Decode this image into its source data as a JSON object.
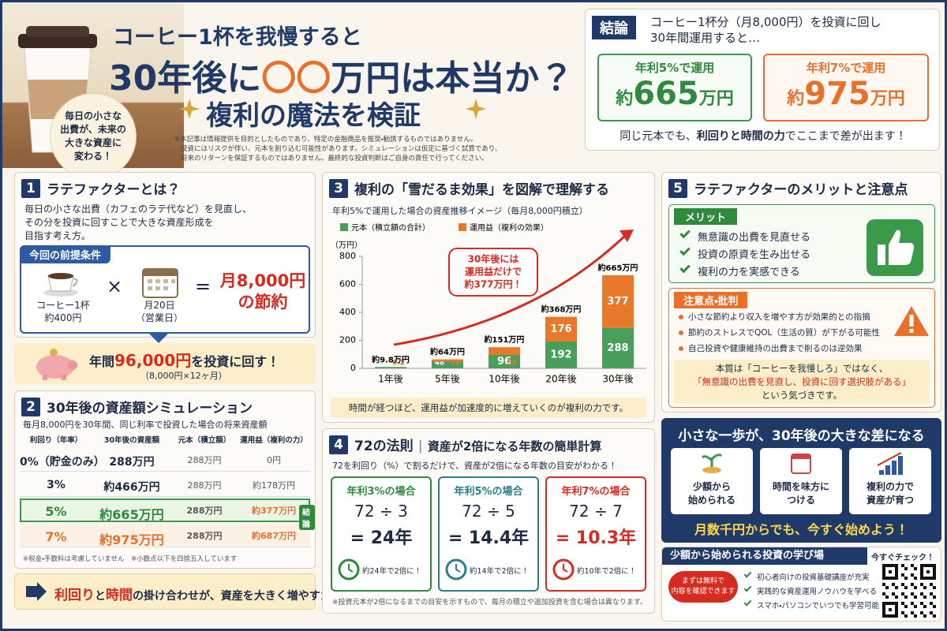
{
  "header": {
    "title_line1": "コーヒー1杯を我慢すると",
    "title_line2": [
      "30年後に",
      "〇〇",
      "万円は本当か？"
    ],
    "title_line3": "複利の魔法を検証",
    "badge": [
      "毎日の小さな",
      "出費が、未来の",
      "大きな資産に",
      "変わる！"
    ],
    "disclaimer": [
      "※本記事は情報提供を目的としたものであり、特定の金融商品を推奨・勧誘するものではありません。",
      "投資にはリスクが伴い、元本を割り込む可能性があります。シミュレーションは仮定に基づく試算であり、",
      "将来のリターンを保証するものではありません。最終的な投資判断はご自身の責任で行ってください。"
    ]
  },
  "conclusion": {
    "label": "結論",
    "text": [
      "コーヒー1杯分（月8,000円）を投資に回し",
      "30年間運用すると…"
    ],
    "cards": [
      {
        "heading": "年利5%で運用",
        "amount": [
          "約",
          "665",
          "万円"
        ]
      },
      {
        "heading": "年利7%で運用",
        "amount": [
          "約",
          "975",
          "万円"
        ]
      }
    ],
    "footer": [
      "同じ元本でも、",
      "利回りと時間の力",
      "でここまで差が出ます！"
    ]
  },
  "section1": {
    "number": "1",
    "title": "ラテファクターとは？",
    "description": [
      "毎日の小さな出費（カフェのラテ代など）を見直し、",
      "その分を投資に回すことで大きな資産形成を",
      "目指す考え方。"
    ],
    "conditions": {
      "label": "今回の前提条件",
      "coffee": [
        "コーヒー1杯",
        "約400円"
      ],
      "times": "×",
      "days": [
        "月20日",
        "（営業日）"
      ],
      "equals": "=",
      "result": [
        "月8,000円",
        "の節約"
      ]
    },
    "invest": {
      "text": [
        "年間",
        "96,000円",
        "を投資に回す！"
      ],
      "sub": "（8,000円×12ヶ月）"
    }
  },
  "section2": {
    "number": "2",
    "title": "30年後の資産額シミュレーション",
    "subtitle": "毎月8,000円を30年間、同じ利率で投資した場合の将来資産額",
    "table": {
      "header": [
        "利回り（年率）",
        "30年後の資産額",
        "元本（積立額）",
        "運用益（複利の力）"
      ],
      "rows": [
        [
          "0%（貯金のみ）",
          "288万円",
          "288万円",
          "0円"
        ],
        [
          "3%",
          "約466万円",
          "288万円",
          "約178万円"
        ],
        [
          "5%",
          "約665万円",
          "288万円",
          "約377万円"
        ],
        [
          "7%",
          "約975万円",
          "288万円",
          "約687万円"
        ]
      ]
    },
    "tag": "結論",
    "note": "※税金・手数料は考慮していません　※小数点以下を四捨五入しています",
    "banner": [
      "利回り",
      "と",
      "時間",
      "の掛け合わせが、資産を大きく増やすカギ！"
    ]
  },
  "section3": {
    "number": "3",
    "title": "複利の「雪だるま効果」を図解で理解する",
    "subtitle": "年利5%で運用した場合の資産推移イメージ（毎月8,000円積立）",
    "chart": {
      "type": "bar",
      "stacked": true,
      "y_label": "（万円）",
      "categories": [
        "1年後",
        "5年後",
        "10年後",
        "20年後",
        "30年後"
      ],
      "series": [
        {
          "name": "元本（積立額の合計）",
          "color": "#4a9e5c",
          "values": [
            9.6,
            48,
            96,
            192,
            288
          ]
        },
        {
          "name": "運用益（複利の効果）",
          "color": "#e8782a",
          "values": [
            0.2,
            16,
            55,
            176,
            377
          ]
        }
      ],
      "totals": {
        "values": [
          9.8,
          64,
          151,
          368,
          665
        ],
        "value_labels": [
          "約9.8万円",
          "約64万円",
          "約151万円",
          "約368万円",
          "約665万円"
        ]
      },
      "ylim": [
        0,
        800
      ],
      "yticks": [
        0,
        200,
        400,
        600,
        800
      ],
      "grid": false,
      "callout": [
        "30年後には",
        "運用益だけで",
        "約377万円！"
      ]
    },
    "note": "時間が経つほど、運用益が加速度的に増えていくのが複利の力です。"
  },
  "section4": {
    "number": "4",
    "title": "72の法則",
    "title_sub": "資産が2倍になる年数の簡単計算",
    "subtitle": "72を利回り（%）で割るだけで、資産が2倍になる年数の目安がわかる！",
    "cards": [
      {
        "heading": "年利3%の場合",
        "formula": "72 ÷ 3",
        "result": "= 24年",
        "note": "約24年で2倍に！"
      },
      {
        "heading": "年利5%の場合",
        "formula": "72 ÷ 5",
        "result": "= 14.4年",
        "note": "約14年で2倍に！"
      },
      {
        "heading": "年利7%の場合",
        "formula": "72 ÷ 7",
        "result": "= 10.3年",
        "note": "約10年で2倍に！"
      }
    ],
    "footnote": "※投資元本が2倍になるまでの目安を示すもので、毎月の積立や追加投資を含む場合は異なります。"
  },
  "section5": {
    "number": "5",
    "title": "ラテファクターのメリットと注意点",
    "merit_label": "メリット",
    "merits": [
      "無意識の出費を見直せる",
      "投資の原資を生み出せる",
      "複利の力を実感できる"
    ],
    "caution_label": "注意点・批判",
    "cautions": [
      "小さな節約より収入を増やす方が効果的との指摘",
      "節約のストレスでQOL（生活の質）が下がる可能性",
      "自己投資や健康維持の出費まで削るのは逆効果"
    ],
    "essence": [
      "本質は「コーヒーを我慢しろ」ではなく、",
      "「無意識の出費を見直し、投資に回す選択肢がある」",
      "という気づきです。"
    ]
  },
  "cta": {
    "title": "小さな一歩が、30年後の大きな差になる",
    "cards": [
      [
        "少額から",
        "始められる"
      ],
      [
        "時間を味方に",
        "つける"
      ],
      [
        "複利の力で",
        "資産が育つ"
      ]
    ],
    "slogan": "月数千円からでも、今すぐ始めよう！"
  },
  "learning": {
    "title": "少額から始められる投資の学び場",
    "check": "今すぐチェック！",
    "button": [
      "まずは無料で",
      "内容を確認できます"
    ],
    "items": [
      "初心者向けの投資基礎講座が充実",
      "実践的な資産運用ノウハウを学べる",
      "スマホ・パソコンでいつでも学習可能"
    ]
  }
}
